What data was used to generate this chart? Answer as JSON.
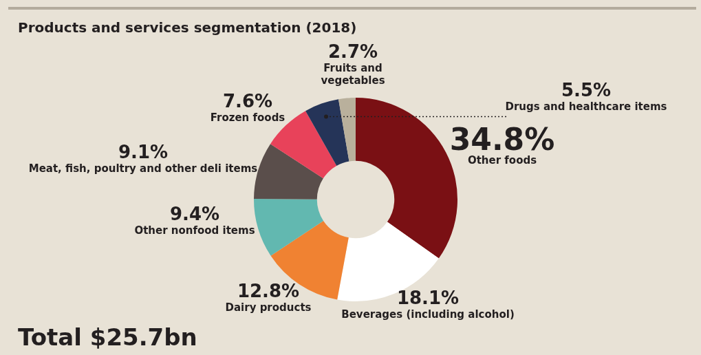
{
  "chart_data": {
    "type": "donut",
    "title": "Products and services segmentation (2018)",
    "categories": [
      "Other foods",
      "Beverages (including alcohol)",
      "Dairy products",
      "Other nonfood items",
      "Meat, fish, poultry and other deli items",
      "Frozen foods",
      "Drugs and healthcare items",
      "Fruits and vegetables"
    ],
    "values": [
      34.8,
      18.1,
      12.8,
      9.4,
      9.1,
      7.6,
      5.5,
      2.7
    ],
    "value_labels": [
      "34.8%",
      "18.1%",
      "12.8%",
      "9.4%",
      "9.1%",
      "7.6%",
      "5.5%",
      "2.7%"
    ],
    "colors": [
      "#7a1014",
      "#ffffff",
      "#f08232",
      "#62b8b0",
      "#5a4e4b",
      "#e8425a",
      "#253458",
      "#b9b09c"
    ],
    "legend": false,
    "annotations": [
      "Total $25.7bn"
    ]
  }
}
